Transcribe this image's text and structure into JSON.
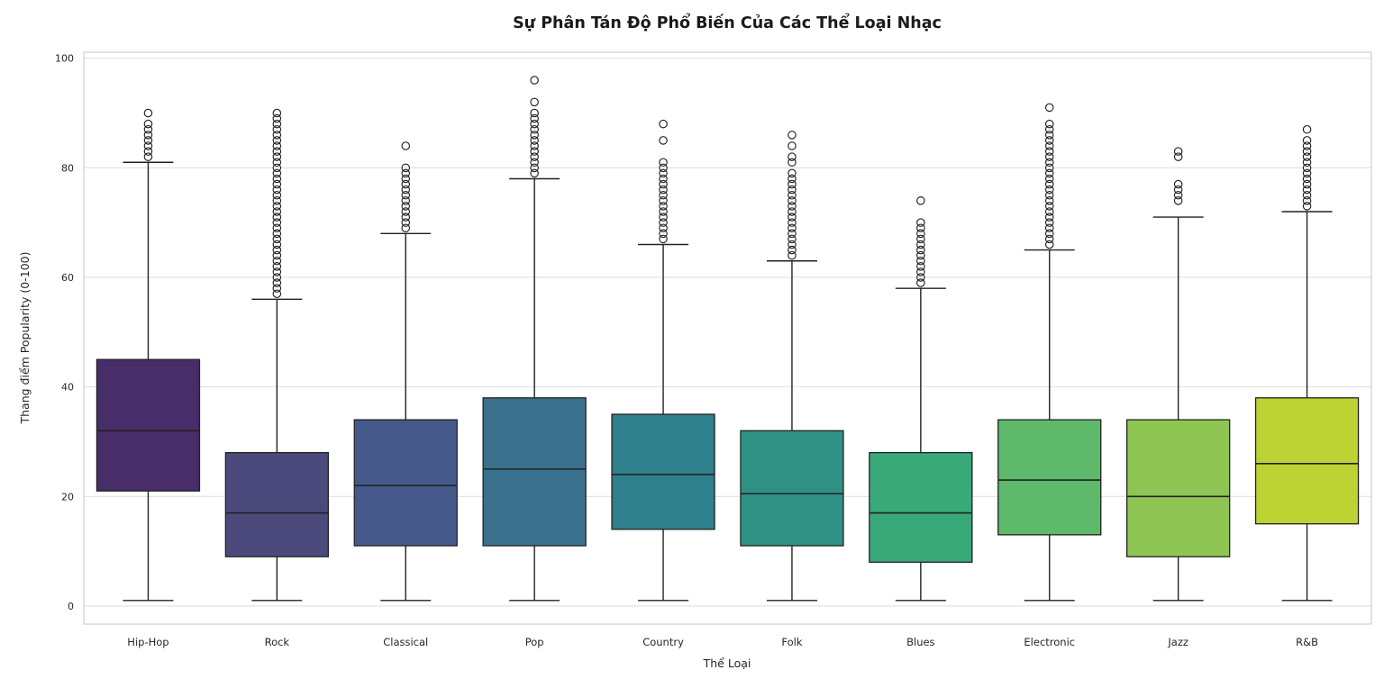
{
  "chart_data": {
    "type": "box",
    "title": "Sự Phân Tán Độ Phổ Biến Của Các Thể Loại Nhạc",
    "xlabel": "Thể Loại",
    "ylabel": "Thang điểm Popularity (0-100)",
    "y_ticks": [
      0,
      20,
      40,
      60,
      80,
      100
    ],
    "ylim": [
      -3.3,
      101.1
    ],
    "grid": "horizontal",
    "legend": "none",
    "categories": [
      "Hip-Hop",
      "Rock",
      "Classical",
      "Pop",
      "Country",
      "Folk",
      "Blues",
      "Electronic",
      "Jazz",
      "R&B"
    ],
    "boxes": [
      {
        "category": "Hip-Hop",
        "whisker_low": 1,
        "q1": 21,
        "median": 32,
        "q3": 45,
        "whisker_high": 81,
        "outliers": [
          82,
          83,
          84,
          85,
          86,
          87,
          88,
          90
        ],
        "color": "#472d69"
      },
      {
        "category": "Rock",
        "whisker_low": 1,
        "q1": 9,
        "median": 17,
        "q3": 28,
        "whisker_high": 56,
        "outliers": [
          57,
          58,
          59,
          60,
          61,
          62,
          63,
          64,
          65,
          66,
          67,
          68,
          69,
          70,
          71,
          72,
          73,
          74,
          75,
          76,
          77,
          78,
          79,
          80,
          81,
          82,
          83,
          84,
          85,
          86,
          87,
          88,
          89,
          90
        ],
        "color": "#4c4a7d"
      },
      {
        "category": "Classical",
        "whisker_low": 1,
        "q1": 11,
        "median": 22,
        "q3": 34,
        "whisker_high": 68,
        "outliers": [
          69,
          70,
          71,
          72,
          73,
          74,
          75,
          76,
          77,
          78,
          79,
          80,
          84
        ],
        "color": "#45598b"
      },
      {
        "category": "Pop",
        "whisker_low": 1,
        "q1": 11,
        "median": 25,
        "q3": 38,
        "whisker_high": 78,
        "outliers": [
          79,
          80,
          81,
          82,
          83,
          84,
          85,
          86,
          87,
          88,
          89,
          90,
          92,
          96
        ],
        "color": "#39718e"
      },
      {
        "category": "Country",
        "whisker_low": 1,
        "q1": 14,
        "median": 24,
        "q3": 35,
        "whisker_high": 66,
        "outliers": [
          67,
          68,
          69,
          70,
          71,
          72,
          73,
          74,
          75,
          76,
          77,
          78,
          79,
          80,
          81,
          85,
          88
        ],
        "color": "#2f808d"
      },
      {
        "category": "Folk",
        "whisker_low": 1,
        "q1": 11,
        "median": 20.5,
        "q3": 32,
        "whisker_high": 63,
        "outliers": [
          64,
          65,
          66,
          67,
          68,
          69,
          70,
          71,
          72,
          73,
          74,
          75,
          76,
          77,
          78,
          79,
          81,
          82,
          84,
          86
        ],
        "color": "#2f9184"
      },
      {
        "category": "Blues",
        "whisker_low": 1,
        "q1": 8,
        "median": 17,
        "q3": 28,
        "whisker_high": 58,
        "outliers": [
          59,
          60,
          61,
          62,
          63,
          64,
          65,
          66,
          67,
          68,
          69,
          70,
          74
        ],
        "color": "#3aa979"
      },
      {
        "category": "Electronic",
        "whisker_low": 1,
        "q1": 13,
        "median": 23,
        "q3": 34,
        "whisker_high": 65,
        "outliers": [
          66,
          67,
          68,
          69,
          70,
          71,
          72,
          73,
          74,
          75,
          76,
          77,
          78,
          79,
          80,
          81,
          82,
          83,
          84,
          85,
          86,
          87,
          88,
          91
        ],
        "color": "#5fb96a"
      },
      {
        "category": "Jazz",
        "whisker_low": 1,
        "q1": 9,
        "median": 20,
        "q3": 34,
        "whisker_high": 71,
        "outliers": [
          74,
          75,
          76,
          77,
          82,
          83
        ],
        "color": "#8fc653"
      },
      {
        "category": "R&B",
        "whisker_low": 1,
        "q1": 15,
        "median": 26,
        "q3": 38,
        "whisker_high": 72,
        "outliers": [
          73,
          74,
          75,
          76,
          77,
          78,
          79,
          80,
          81,
          82,
          83,
          84,
          85,
          87
        ],
        "color": "#bdd333"
      }
    ]
  },
  "style_colors": {
    "box_edge": "#222222",
    "grid_line": "#e0e0e0",
    "frame": "#cfcfcf",
    "tick_text": "#262626",
    "title_text": "#1a1a1a"
  }
}
